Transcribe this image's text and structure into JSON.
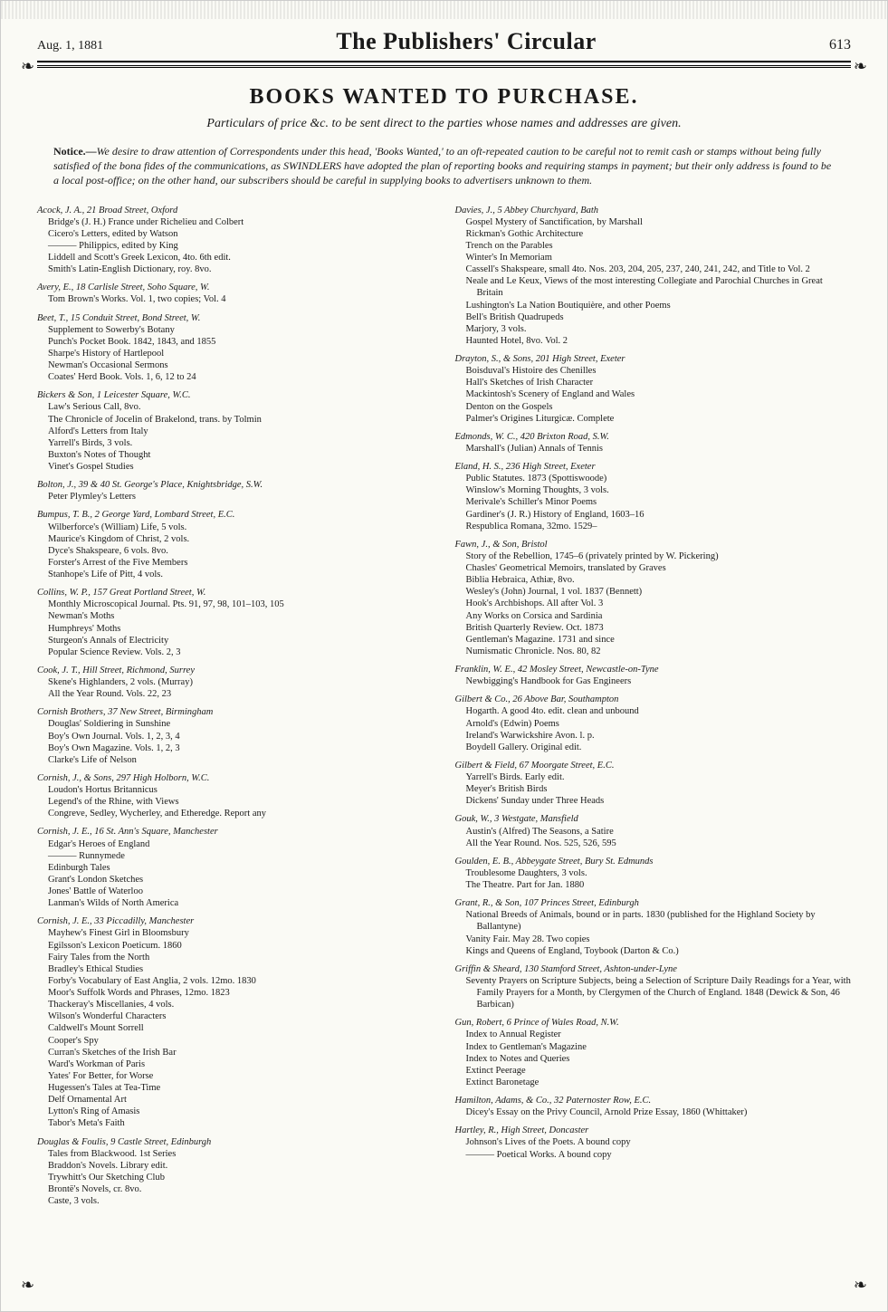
{
  "header": {
    "date": "Aug. 1, 1881",
    "title": "The Publishers' Circular",
    "page": "613"
  },
  "section_title": "BOOKS WANTED TO PURCHASE.",
  "subtitle": "Particulars of price &c. to be sent direct to the parties whose names and addresses are given.",
  "notice_label": "Notice.—",
  "notice_text": "We desire to draw attention of Correspondents under this head, 'Books Wanted,' to an oft-repeated caution to be careful not to remit cash or stamps without being fully satisfied of the bona fides of the communications, as SWINDLERS have adopted the plan of reporting books and requiring stamps in payment; but their only address is found to be a local post-office; on the other hand, our subscribers should be careful in supplying books to advertisers unknown to them.",
  "left": [
    {
      "head": "Acock, J. A., 21 Broad Street, Oxford",
      "lines": [
        "Bridge's (J. H.) France under Richelieu and Colbert",
        "Cicero's Letters, edited by Watson",
        "——— Philippics, edited by King",
        "Liddell and Scott's Greek Lexicon, 4to.  6th edit.",
        "Smith's Latin-English Dictionary, roy. 8vo."
      ]
    },
    {
      "head": "Avery, E., 18 Carlisle Street, Soho Square, W.",
      "lines": [
        "Tom Brown's Works.  Vol. 1, two copies; Vol. 4"
      ]
    },
    {
      "head": "Beet, T., 15 Conduit Street, Bond Street, W.",
      "lines": [
        "Supplement to Sowerby's Botany",
        "Punch's Pocket Book.  1842, 1843, and 1855",
        "Sharpe's History of Hartlepool",
        "Newman's Occasional Sermons",
        "Coates' Herd Book.  Vols. 1, 6, 12 to 24"
      ]
    },
    {
      "head": "Bickers & Son, 1 Leicester Square, W.C.",
      "lines": [
        "Law's Serious Call, 8vo.",
        "The Chronicle of Jocelin of Brakelond, trans. by Tolmin",
        "Alford's Letters from Italy",
        "Yarrell's Birds, 3 vols.",
        "Buxton's Notes of Thought",
        "Vinet's Gospel Studies"
      ]
    },
    {
      "head": "Bolton, J., 39 & 40 St. George's Place, Knightsbridge, S.W.",
      "lines": [
        "Peter Plymley's Letters"
      ]
    },
    {
      "head": "Bumpus, T. B., 2 George Yard, Lombard Street, E.C.",
      "lines": [
        "Wilberforce's (William) Life, 5 vols.",
        "Maurice's Kingdom of Christ, 2 vols.",
        "Dyce's Shakspeare, 6 vols. 8vo.",
        "Forster's Arrest of the Five Members",
        "Stanhope's Life of Pitt, 4 vols."
      ]
    },
    {
      "head": "Collins, W. P., 157 Great Portland Street, W.",
      "lines": [
        "Monthly Microscopical Journal.  Pts. 91, 97, 98, 101–103, 105",
        "Newman's Moths",
        "Humphreys' Moths",
        "Sturgeon's Annals of Electricity",
        "Popular Science Review.  Vols. 2, 3"
      ]
    },
    {
      "head": "Cook, J. T., Hill Street, Richmond, Surrey",
      "lines": [
        "Skene's Highlanders, 2 vols. (Murray)",
        "All the Year Round.  Vols. 22, 23"
      ]
    },
    {
      "head": "Cornish Brothers, 37 New Street, Birmingham",
      "lines": [
        "Douglas' Soldiering in Sunshine",
        "Boy's Own Journal.  Vols. 1, 2, 3, 4",
        "Boy's Own Magazine.  Vols. 1, 2, 3",
        "Clarke's Life of Nelson"
      ]
    },
    {
      "head": "Cornish, J., & Sons, 297 High Holborn, W.C.",
      "lines": [
        "Loudon's Hortus Britannicus",
        "Legend's of the Rhine, with Views",
        "Congreve, Sedley, Wycherley, and Etheredge.  Report any"
      ]
    },
    {
      "head": "Cornish, J. E., 16 St. Ann's Square, Manchester",
      "lines": [
        "Edgar's Heroes of England",
        "——— Runnymede",
        "Edinburgh Tales",
        "Grant's London Sketches",
        "Jones' Battle of Waterloo",
        "Lanman's Wilds of North America"
      ]
    },
    {
      "head": "Cornish, J. E., 33 Piccadilly, Manchester",
      "lines": [
        "Mayhew's Finest Girl in Bloomsbury",
        "Egilsson's Lexicon Poeticum.  1860",
        "Fairy Tales from the North",
        "Bradley's Ethical Studies",
        "Forby's Vocabulary of East Anglia, 2 vols. 12mo.  1830",
        "Moor's Suffolk Words and Phrases, 12mo.  1823",
        "Thackeray's Miscellanies, 4 vols.",
        "Wilson's Wonderful Characters",
        "Caldwell's Mount Sorrell",
        "Cooper's Spy",
        "Curran's Sketches of the Irish Bar",
        "Ward's Workman of Paris",
        "Yates' For Better, for Worse",
        "Hugessen's Tales at Tea-Time",
        "Delf Ornamental Art",
        "Lytton's Ring of Amasis",
        "Tabor's Meta's Faith"
      ]
    },
    {
      "head": "Douglas & Foulis, 9 Castle Street, Edinburgh",
      "lines": [
        "Tales from Blackwood.  1st Series",
        "Braddon's Novels.  Library edit.",
        "Trywhitt's Our Sketching Club",
        "Brontë's Novels, cr. 8vo.",
        "Caste, 3 vols."
      ]
    }
  ],
  "right": [
    {
      "head": "Davies, J., 5 Abbey Churchyard, Bath",
      "lines": [
        "Gospel Mystery of Sanctification, by Marshall",
        "Rickman's Gothic Architecture",
        "Trench on the Parables",
        "Winter's In Memoriam",
        "Cassell's Shakspeare, small 4to.  Nos. 203, 204, 205, 237, 240, 241, 242, and Title to Vol. 2",
        "Neale and Le Keux, Views of the most interesting Collegiate and Parochial Churches in Great Britain",
        "Lushington's La Nation Boutiquière, and other Poems",
        "Bell's British Quadrupeds",
        "Marjory, 3 vols.",
        "Haunted Hotel, 8vo.  Vol. 2"
      ]
    },
    {
      "head": "Drayton, S., & Sons, 201 High Street, Exeter",
      "lines": [
        "Boisduval's Histoire des Chenilles",
        "Hall's Sketches of Irish Character",
        "Mackintosh's Scenery of England and Wales",
        "Denton on the Gospels",
        "Palmer's Origines Liturgicæ.  Complete"
      ]
    },
    {
      "head": "Edmonds, W. C., 420 Brixton Road, S.W.",
      "lines": [
        "Marshall's (Julian) Annals of Tennis"
      ]
    },
    {
      "head": "Eland, H. S., 236 High Street, Exeter",
      "lines": [
        "Public Statutes.  1873 (Spottiswoode)",
        "Winslow's Morning Thoughts, 3 vols.",
        "Merivale's Schiller's Minor Poems",
        "Gardiner's (J. R.) History of England, 1603–16",
        "Respublica Romana, 32mo.  1529–"
      ]
    },
    {
      "head": "Fawn, J., & Son, Bristol",
      "lines": [
        "Story of the Rebellion, 1745–6 (privately printed by W. Pickering)",
        "Chasles' Geometrical Memoirs, translated by Graves",
        "Biblia Hebraica, Athiæ, 8vo.",
        "Wesley's (John) Journal, 1 vol.  1837 (Bennett)",
        "Hook's Archbishops.  All after Vol. 3",
        "Any Works on Corsica and Sardinia",
        "British Quarterly Review.  Oct. 1873",
        "Gentleman's Magazine.  1731 and since",
        "Numismatic Chronicle.  Nos. 80, 82"
      ]
    },
    {
      "head": "Franklin, W. E., 42 Mosley Street, Newcastle-on-Tyne",
      "lines": [
        "Newbigging's Handbook for Gas Engineers"
      ]
    },
    {
      "head": "Gilbert & Co., 26 Above Bar, Southampton",
      "lines": [
        "Hogarth.  A good 4to. edit. clean and unbound",
        "Arnold's (Edwin) Poems",
        "Ireland's Warwickshire Avon. l. p.",
        "Boydell Gallery.  Original edit."
      ]
    },
    {
      "head": "Gilbert & Field, 67 Moorgate Street, E.C.",
      "lines": [
        "Yarrell's Birds.  Early edit.",
        "Meyer's British Birds",
        "Dickens' Sunday under Three Heads"
      ]
    },
    {
      "head": "Gouk, W., 3 Westgate, Mansfield",
      "lines": [
        "Austin's (Alfred) The Seasons, a Satire",
        "All the Year Round.  Nos. 525, 526, 595"
      ]
    },
    {
      "head": "Goulden, E. B., Abbeygate Street, Bury St. Edmunds",
      "lines": [
        "Troublesome Daughters, 3 vols.",
        "The Theatre.  Part for Jan. 1880"
      ]
    },
    {
      "head": "Grant, R., & Son, 107 Princes Street, Edinburgh",
      "lines": [
        "National Breeds of Animals, bound or in parts.  1830 (published for the Highland Society by Ballantyne)",
        "Vanity Fair.  May 28.  Two copies",
        "Kings and Queens of England, Toybook (Darton & Co.)"
      ]
    },
    {
      "head": "Griffin & Sheard, 130 Stamford Street, Ashton-under-Lyne",
      "lines": [
        "Seventy Prayers on Scripture Subjects, being a Selection of Scripture Daily Readings for a Year, with Family Prayers for a Month, by Clergymen of the Church of England. 1848 (Dewick & Son, 46 Barbican)"
      ]
    },
    {
      "head": "Gun, Robert, 6 Prince of Wales Road, N.W.",
      "lines": [
        "Index to Annual Register",
        "Index to Gentleman's Magazine",
        "Index to Notes and Queries",
        "Extinct Peerage",
        "Extinct Baronetage"
      ]
    },
    {
      "head": "Hamilton, Adams, & Co., 32 Paternoster Row, E.C.",
      "lines": [
        "Dicey's Essay on the Privy Council, Arnold Prize Essay, 1860 (Whittaker)"
      ]
    },
    {
      "head": "Hartley, R., High Street, Doncaster",
      "lines": [
        "Johnson's Lives of the Poets.  A bound copy",
        "——— Poetical Works.  A bound copy"
      ]
    }
  ]
}
